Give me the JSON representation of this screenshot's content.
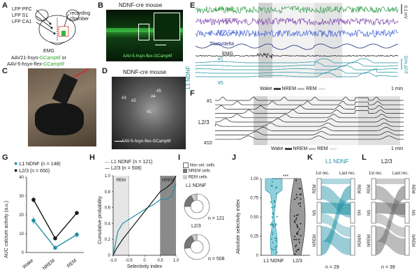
{
  "panels": {
    "A": {
      "label": "A",
      "mouse_regions": [
        "LFP PFC",
        "LFP S1",
        "LFP CA1"
      ],
      "chamber": "recording chamber",
      "emg": "EMG",
      "virus1_prefix": "AAV21-hsyn-",
      "virus1_gene": "GCamp6f",
      "virus1_suffix": " or",
      "virus2_prefix": "AAV-5-hsyn-flex-",
      "virus2_gene": "GCamp6f"
    },
    "B": {
      "label": "B",
      "title": "NDNF-cre mouse",
      "virus": "AAV-5-hsyn-flex-GCamp6f"
    },
    "C": {
      "label": "C"
    },
    "D": {
      "label": "D",
      "title": "NDNF-cre mouse",
      "cells": [
        "#3",
        "#2",
        "#4",
        "#5",
        "#1"
      ],
      "virus": "AAV-5-hsyn-flex-GCamp6f"
    },
    "E": {
      "label": "E",
      "traces": [
        "LFP PFC",
        "LFP S1",
        "LFP CA1",
        "Theta/delta",
        "EMG"
      ],
      "cell_first": "#1",
      "cell_last": "#5",
      "group": "L1 NDNF",
      "scale_v": "0.1 mV",
      "scale_dff": "50% ΔF/F",
      "states": [
        "Wake",
        "NREM",
        "REM"
      ],
      "timescale": "1 min"
    },
    "F": {
      "label": "F",
      "cell_first": "#1",
      "cell_last": "#10",
      "group": "L2/3",
      "states": [
        "Wake",
        "NREM",
        "REM"
      ],
      "timescale": "1 min"
    },
    "G": {
      "label": "G",
      "legend": [
        {
          "name": "L1 NDNF",
          "n": "(n = 148)",
          "color": "#1f8fa3"
        },
        {
          "name": "L2/3",
          "n": "(n = 650)",
          "color": "#1a1a1a"
        }
      ],
      "ylabel": "AUC calcium activity (a.u.)",
      "categories": [
        "Wake",
        "NREM",
        "REM"
      ],
      "yticks": [
        "0",
        "10",
        "20",
        "30",
        "40"
      ]
    },
    "H": {
      "label": "H",
      "legend": [
        {
          "name": "L1 NDNF",
          "n": "(n = 121)"
        },
        {
          "name": "L2/3",
          "n": "(n = 508)"
        }
      ],
      "ylabel": "Cumulative probability",
      "xlabel": "Selectivity index",
      "xticks": [
        "-1.0",
        "-0.5",
        "0",
        "0.5",
        "1.0"
      ],
      "yticks": [
        "0",
        "0.2",
        "0.4",
        "0.6",
        "0.8",
        "1.0"
      ],
      "shade_left": "REM",
      "shade_right": "NREM"
    },
    "I": {
      "label": "I",
      "legend": [
        "Non sel. cells",
        "NREM cells",
        "REM cells"
      ],
      "pie1_title": "L1 NDNF",
      "pie1_n": "n = 121",
      "pie2_title": "L2/3",
      "pie2_n": "n = 508"
    },
    "J": {
      "label": "J",
      "ylabel": "Absolute selectivity index",
      "yticks": [
        "0",
        "0.25",
        "0.50",
        "0.75",
        "1.00"
      ],
      "categories": [
        "L1 NDNF",
        "L2/3"
      ],
      "sig": "***"
    },
    "K": {
      "label": "K",
      "title": "L1 NDNF",
      "rec1": "1st rec.",
      "rec2": "Last rec.",
      "states": [
        "REM",
        "NS",
        "NREM"
      ],
      "n": "n = 29"
    },
    "L": {
      "label": "L",
      "title": "L2/3",
      "rec1": "1st rec.",
      "rec2": "Last rec.",
      "states": [
        "REM",
        "NS",
        "NREM"
      ],
      "n": "n = 39"
    }
  },
  "chart_data": [
    {
      "type": "line",
      "panel": "G",
      "categories": [
        "Wake",
        "NREM",
        "REM"
      ],
      "ylim": [
        0,
        40
      ],
      "series": [
        {
          "name": "L1 NDNF",
          "values": [
            17,
            2.5,
            9.5
          ],
          "errors": [
            2,
            0.5,
            1.5
          ]
        },
        {
          "name": "L2/3",
          "values": [
            28,
            7.5,
            21
          ],
          "errors": [
            1.5,
            0.5,
            1
          ]
        }
      ]
    },
    {
      "type": "line",
      "panel": "H",
      "xlim": [
        -1,
        1
      ],
      "ylim": [
        0,
        1
      ],
      "series": [
        {
          "name": "L1 NDNF",
          "x": [
            -1,
            -0.95,
            -0.85,
            -0.7,
            -0.5,
            -0.3,
            -0.1,
            0.1,
            0.3,
            0.5,
            0.7,
            0.85,
            1.0
          ],
          "y": [
            0,
            0.1,
            0.3,
            0.4,
            0.45,
            0.5,
            0.55,
            0.6,
            0.64,
            0.7,
            0.7,
            0.74,
            0.9
          ]
        },
        {
          "name": "L2/3",
          "x": [
            -1,
            -0.9,
            -0.7,
            -0.5,
            -0.3,
            -0.1,
            0.1,
            0.3,
            0.5,
            0.7,
            0.9,
            1.0
          ],
          "y": [
            0,
            0.08,
            0.2,
            0.3,
            0.4,
            0.5,
            0.6,
            0.7,
            0.8,
            0.85,
            0.92,
            1.0
          ]
        }
      ]
    },
    {
      "type": "pie",
      "panel": "I",
      "series": [
        {
          "name": "L1 NDNF",
          "values": [
            75,
            17,
            8
          ]
        },
        {
          "name": "L2/3",
          "values": [
            73,
            20,
            7
          ]
        }
      ],
      "categories": [
        "Non sel. cells",
        "NREM cells",
        "REM cells"
      ]
    }
  ]
}
